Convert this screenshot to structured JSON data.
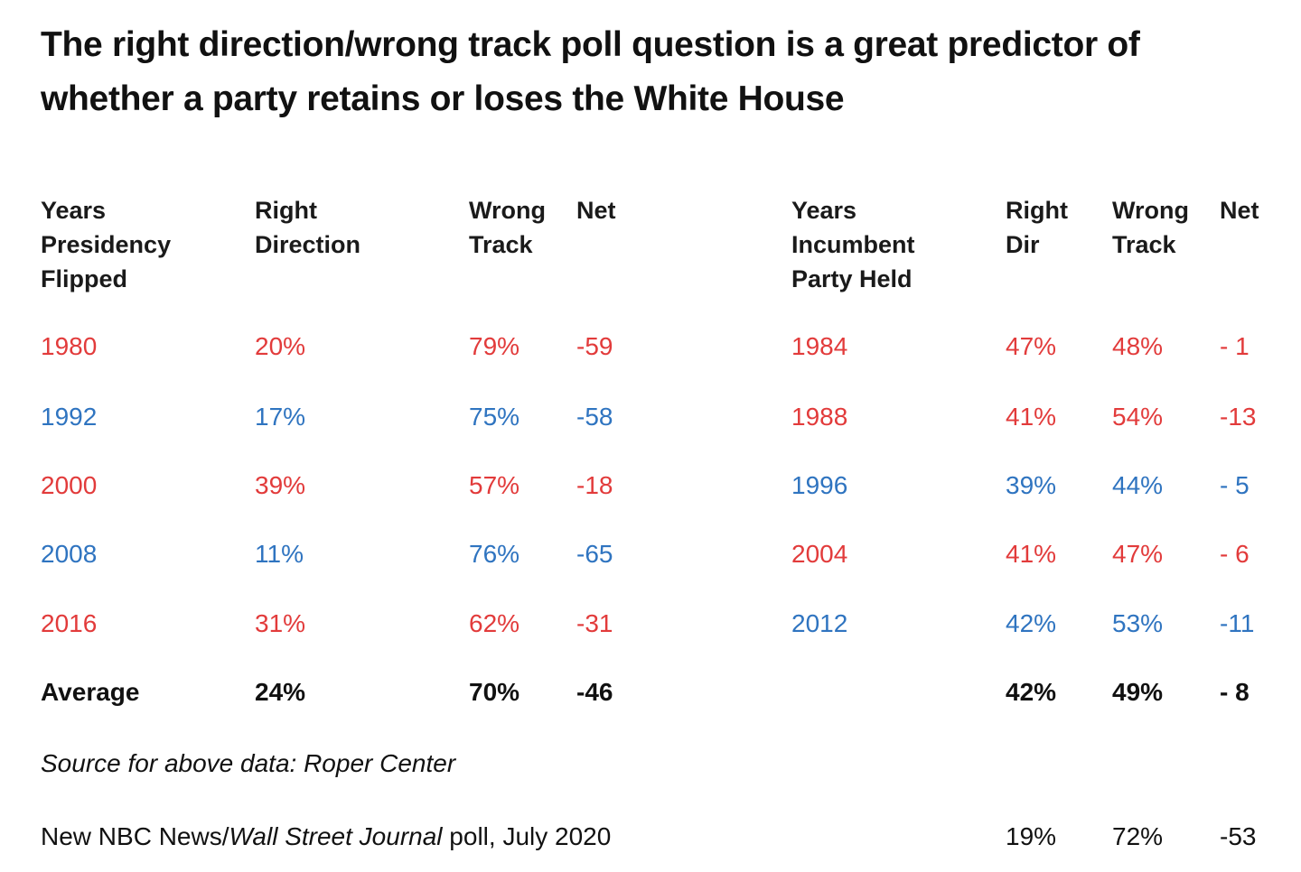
{
  "title": {
    "line1": "The right direction/wrong track poll question is a great predictor of",
    "line2": "whether a party retains or loses the White House"
  },
  "colors": {
    "red": "#e23b3b",
    "blue": "#2f74c0",
    "black": "#111111"
  },
  "chart_data": {
    "type": "table",
    "tables": [
      {
        "headers": [
          [
            "Years",
            "Presidency",
            "Flipped"
          ],
          [
            "Right",
            "Direction"
          ],
          [
            "Wrong",
            "Track"
          ],
          [
            "Net"
          ]
        ],
        "rows": [
          {
            "year": "1980",
            "right": "20%",
            "wrong": "79%",
            "net": "-59",
            "color": "red"
          },
          {
            "year": "1992",
            "right": "17%",
            "wrong": "75%",
            "net": "-58",
            "color": "blue"
          },
          {
            "year": "2000",
            "right": "39%",
            "wrong": "57%",
            "net": "-18",
            "color": "red"
          },
          {
            "year": "2008",
            "right": "11%",
            "wrong": "76%",
            "net": "-65",
            "color": "blue"
          },
          {
            "year": "2016",
            "right": "31%",
            "wrong": "62%",
            "net": "-31",
            "color": "red"
          }
        ],
        "average": {
          "label": "Average",
          "right": "24%",
          "wrong": "70%",
          "net": "-46"
        }
      },
      {
        "headers": [
          [
            "Years",
            "Incumbent",
            "Party Held"
          ],
          [
            "Right",
            "Dir"
          ],
          [
            "Wrong",
            "Track"
          ],
          [
            "Net"
          ]
        ],
        "rows": [
          {
            "year": "1984",
            "right": "47%",
            "wrong": "48%",
            "net": "- 1",
            "color": "red"
          },
          {
            "year": "1988",
            "right": "41%",
            "wrong": "54%",
            "net": "-13",
            "color": "red"
          },
          {
            "year": "1996",
            "right": "39%",
            "wrong": "44%",
            "net": "- 5",
            "color": "blue"
          },
          {
            "year": "2004",
            "right": "41%",
            "wrong": "47%",
            "net": "- 6",
            "color": "red"
          },
          {
            "year": "2012",
            "right": "42%",
            "wrong": "53%",
            "net": "-11",
            "color": "blue"
          }
        ],
        "average": {
          "label": "",
          "right": "42%",
          "wrong": "49%",
          "net": "- 8"
        }
      }
    ]
  },
  "source": "Source for above data: Roper Center",
  "poll": {
    "label_prefix": "New NBC News/",
    "label_italic": "Wall Street Journal",
    "label_suffix": " poll, July 2020",
    "right": "19%",
    "wrong": "72%",
    "net": "-53"
  }
}
